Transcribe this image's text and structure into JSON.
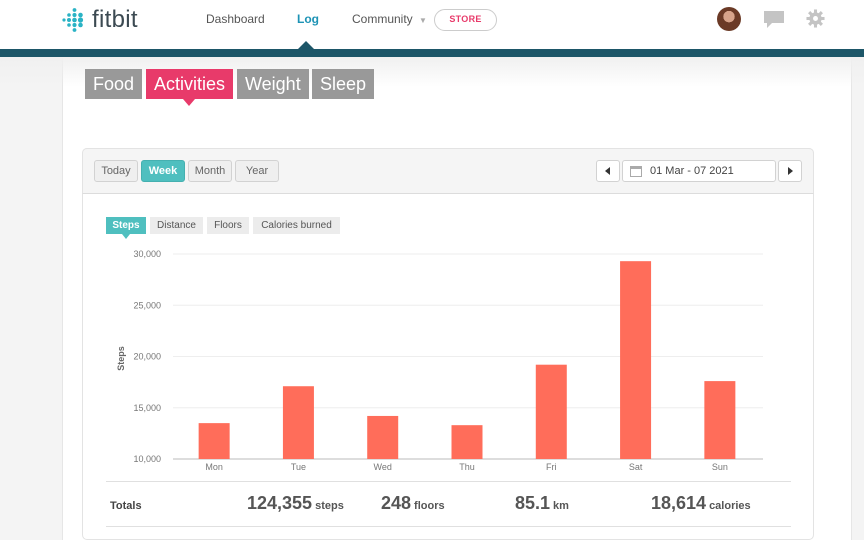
{
  "brand": {
    "name": "fitbit"
  },
  "nav": {
    "items": [
      "Dashboard",
      "Log",
      "Community"
    ],
    "active": "Log",
    "store": "STORE"
  },
  "log_tabs": [
    "Food",
    "Activities",
    "Weight",
    "Sleep"
  ],
  "active_log_tab": "Activities",
  "range": {
    "buttons": [
      "Today",
      "Week",
      "Month",
      "Year"
    ],
    "active": "Week"
  },
  "date_range": "01 Mar - 07 2021",
  "metric_tabs": [
    "Steps",
    "Distance",
    "Floors",
    "Calories burned"
  ],
  "active_metric": "Steps",
  "colors": {
    "accent_pink": "#e83a6a",
    "teal": "#4fbfbf",
    "bar": "#ff6d5a",
    "nav_stripe": "#1d5668"
  },
  "chart_data": {
    "type": "bar",
    "categories": [
      "Mon",
      "Tue",
      "Wed",
      "Thu",
      "Fri",
      "Sat",
      "Sun"
    ],
    "values": [
      13500,
      17100,
      14200,
      13300,
      19200,
      29300,
      17600
    ],
    "ylabel": "Steps",
    "ylim": [
      10000,
      30000
    ],
    "yticks": [
      "10,000",
      "15,000",
      "20,000",
      "25,000",
      "30,000"
    ],
    "grid": true
  },
  "totals": {
    "label": "Totals",
    "steps": "124,355",
    "steps_unit": "steps",
    "floors": "248",
    "floors_unit": "floors",
    "km": "85.1",
    "km_unit": "km",
    "calories": "18,614",
    "calories_unit": "calories"
  }
}
